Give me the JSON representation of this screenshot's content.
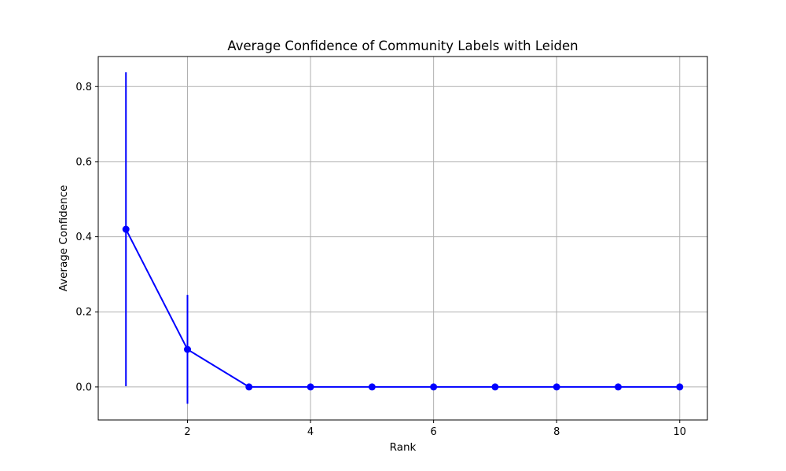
{
  "chart_data": {
    "type": "line",
    "title": "Average Confidence of Community Labels with Leiden",
    "xlabel": "Rank",
    "ylabel": "Average Confidence",
    "xlim": [
      0.55,
      10.45
    ],
    "ylim": [
      -0.088,
      0.88
    ],
    "x_ticks": [
      2,
      4,
      6,
      8,
      10
    ],
    "y_ticks": [
      0.0,
      0.2,
      0.4,
      0.6,
      0.8
    ],
    "x_tick_labels": [
      "2",
      "4",
      "6",
      "8",
      "10"
    ],
    "y_tick_labels": [
      "0.0",
      "0.2",
      "0.4",
      "0.6",
      "0.8"
    ],
    "grid": true,
    "series": [
      {
        "color": "#0000ff",
        "marker": "circle",
        "x": [
          1,
          2,
          3,
          4,
          5,
          6,
          7,
          8,
          9,
          10
        ],
        "y": [
          0.42,
          0.1,
          0.0,
          0.0,
          0.0,
          0.0,
          0.0,
          0.0,
          0.0,
          0.0
        ],
        "error": [
          0.418,
          0.145,
          0,
          0,
          0,
          0,
          0,
          0,
          0,
          0
        ]
      }
    ],
    "colors": {
      "grid": "#b0b0b0",
      "axes": "#000000",
      "background": "#ffffff"
    }
  }
}
